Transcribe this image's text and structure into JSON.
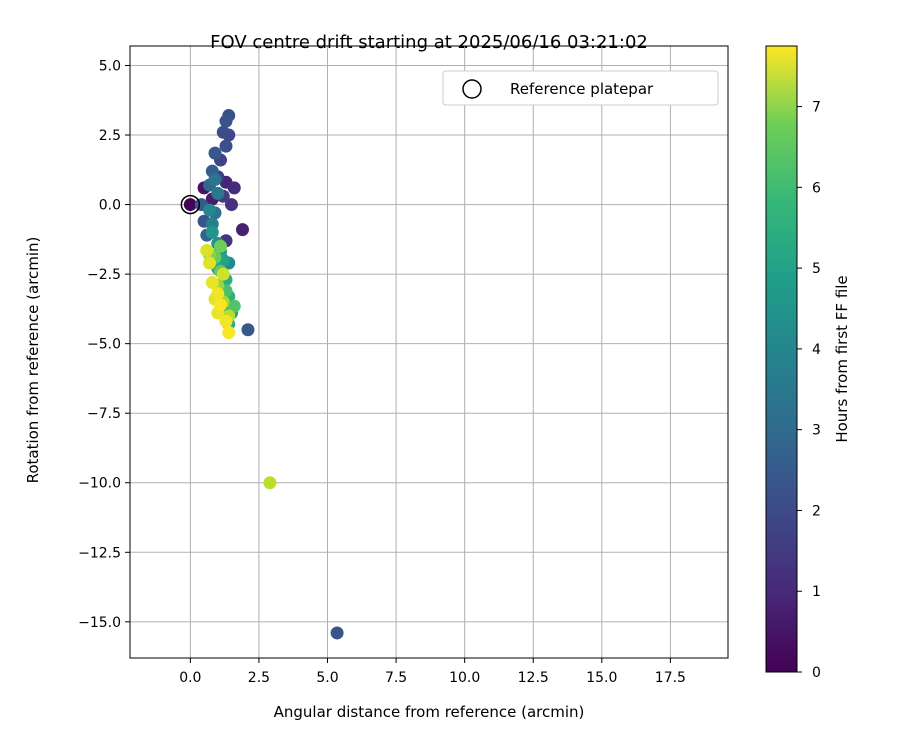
{
  "chart_data": {
    "type": "scatter",
    "title": "FOV centre drift starting at 2025/06/16 03:21:02",
    "xlabel": "Angular distance from reference (arcmin)",
    "ylabel": "Rotation from reference (arcmin)",
    "xlim": [
      -2.2,
      19.6
    ],
    "ylim": [
      -16.3,
      5.7
    ],
    "xticks": [
      0.0,
      2.5,
      5.0,
      7.5,
      10.0,
      12.5,
      15.0,
      17.5
    ],
    "xtick_labels": [
      "0.0",
      "2.5",
      "5.0",
      "7.5",
      "10.0",
      "12.5",
      "15.0",
      "17.5"
    ],
    "yticks": [
      5.0,
      2.5,
      0.0,
      -2.5,
      -5.0,
      -7.5,
      -10.0,
      -12.5,
      -15.0
    ],
    "ytick_labels": [
      "5.0",
      "2.5",
      "0.0",
      "−2.5",
      "−5.0",
      "−7.5",
      "−10.0",
      "−12.5",
      "−15.0"
    ],
    "grid": true,
    "legend": {
      "label": "Reference platepar",
      "position": "top-right"
    },
    "reference_point": {
      "x": 0.0,
      "y": 0.0
    },
    "colorbar": {
      "label": "Hours from first FF file",
      "colormap": "viridis",
      "range": [
        0,
        7.75
      ],
      "ticks": [
        0,
        1,
        2,
        3,
        4,
        5,
        6,
        7
      ],
      "tick_labels": [
        "0",
        "1",
        "2",
        "3",
        "4",
        "5",
        "6",
        "7"
      ]
    },
    "points": [
      {
        "x": 0.0,
        "y": 0.0,
        "h": 0.05
      },
      {
        "x": 0.5,
        "y": 0.6,
        "h": 0.4
      },
      {
        "x": 0.8,
        "y": 0.2,
        "h": 0.6
      },
      {
        "x": 1.3,
        "y": 0.8,
        "h": 0.8
      },
      {
        "x": 1.6,
        "y": 0.6,
        "h": 1.0
      },
      {
        "x": 1.5,
        "y": 0.0,
        "h": 1.1
      },
      {
        "x": 1.9,
        "y": -0.9,
        "h": 0.7
      },
      {
        "x": 1.3,
        "y": -1.3,
        "h": 1.2
      },
      {
        "x": 1.2,
        "y": 0.3,
        "h": 1.4
      },
      {
        "x": 1.4,
        "y": 3.2,
        "h": 1.9
      },
      {
        "x": 1.3,
        "y": 3.0,
        "h": 2.0
      },
      {
        "x": 1.2,
        "y": 2.6,
        "h": 1.8
      },
      {
        "x": 1.4,
        "y": 2.5,
        "h": 1.7
      },
      {
        "x": 1.3,
        "y": 2.1,
        "h": 1.9
      },
      {
        "x": 0.9,
        "y": 1.85,
        "h": 2.1
      },
      {
        "x": 1.1,
        "y": 1.6,
        "h": 1.6
      },
      {
        "x": 0.8,
        "y": 1.2,
        "h": 2.3
      },
      {
        "x": 1.0,
        "y": 1.0,
        "h": 1.5
      },
      {
        "x": 0.7,
        "y": 0.7,
        "h": 2.6
      },
      {
        "x": 0.4,
        "y": 0.0,
        "h": 2.2
      },
      {
        "x": 0.5,
        "y": -0.6,
        "h": 2.0
      },
      {
        "x": 0.6,
        "y": -1.1,
        "h": 2.4
      },
      {
        "x": 0.9,
        "y": -0.3,
        "h": 2.9
      },
      {
        "x": 1.0,
        "y": 0.4,
        "h": 3.1
      },
      {
        "x": 0.8,
        "y": -0.7,
        "h": 3.3
      },
      {
        "x": 0.7,
        "y": -0.2,
        "h": 3.6
      },
      {
        "x": 0.9,
        "y": 0.9,
        "h": 3.0
      },
      {
        "x": 2.1,
        "y": -4.5,
        "h": 2.1
      },
      {
        "x": 5.35,
        "y": -15.4,
        "h": 2.05
      },
      {
        "x": 1.0,
        "y": -1.4,
        "h": 3.8
      },
      {
        "x": 0.8,
        "y": -1.0,
        "h": 4.0
      },
      {
        "x": 1.1,
        "y": -1.7,
        "h": 4.2
      },
      {
        "x": 1.2,
        "y": -2.0,
        "h": 4.4
      },
      {
        "x": 1.4,
        "y": -2.1,
        "h": 3.7
      },
      {
        "x": 1.0,
        "y": -2.3,
        "h": 4.6
      },
      {
        "x": 1.3,
        "y": -2.7,
        "h": 4.8
      },
      {
        "x": 1.4,
        "y": -3.3,
        "h": 5.0
      },
      {
        "x": 1.5,
        "y": -3.9,
        "h": 4.3
      },
      {
        "x": 1.4,
        "y": -4.3,
        "h": 4.9
      },
      {
        "x": 1.2,
        "y": -3.8,
        "h": 5.2
      },
      {
        "x": 1.6,
        "y": -3.65,
        "h": 5.6
      },
      {
        "x": 1.3,
        "y": -3.1,
        "h": 5.5
      },
      {
        "x": 1.1,
        "y": -2.4,
        "h": 5.8
      },
      {
        "x": 0.9,
        "y": -1.9,
        "h": 5.9
      },
      {
        "x": 1.1,
        "y": -1.5,
        "h": 6.0
      },
      {
        "x": 0.7,
        "y": -1.8,
        "h": 6.3
      },
      {
        "x": 1.0,
        "y": -2.9,
        "h": 6.5
      },
      {
        "x": 1.2,
        "y": -3.5,
        "h": 6.7
      },
      {
        "x": 1.4,
        "y": -4.0,
        "h": 6.9
      },
      {
        "x": 2.9,
        "y": -10.0,
        "h": 6.95
      },
      {
        "x": 0.6,
        "y": -1.65,
        "h": 7.3
      },
      {
        "x": 0.7,
        "y": -2.1,
        "h": 7.4
      },
      {
        "x": 0.8,
        "y": -2.8,
        "h": 7.5
      },
      {
        "x": 1.0,
        "y": -3.2,
        "h": 7.6
      },
      {
        "x": 1.1,
        "y": -3.6,
        "h": 7.7
      },
      {
        "x": 1.0,
        "y": -3.9,
        "h": 7.5
      },
      {
        "x": 1.3,
        "y": -4.2,
        "h": 7.6
      },
      {
        "x": 1.4,
        "y": -4.6,
        "h": 7.7
      },
      {
        "x": 0.9,
        "y": -3.4,
        "h": 7.4
      },
      {
        "x": 1.2,
        "y": -2.5,
        "h": 7.2
      }
    ]
  }
}
